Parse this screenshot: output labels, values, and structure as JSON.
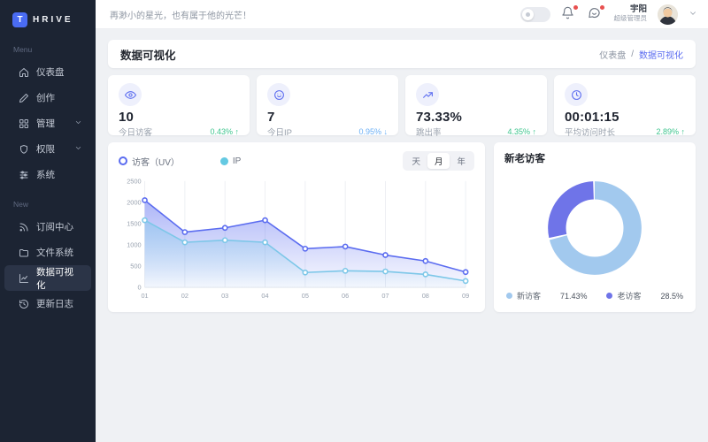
{
  "app": {
    "logo_letter": "T",
    "logo_text": "HRIVE"
  },
  "sidebar": {
    "sections": [
      {
        "label": "Menu",
        "items": [
          {
            "label": "仪表盘",
            "icon": "home-icon"
          },
          {
            "label": "创作",
            "icon": "edit-icon"
          },
          {
            "label": "管理",
            "icon": "grid-icon",
            "expandable": true
          },
          {
            "label": "权限",
            "icon": "shield-icon",
            "expandable": true
          },
          {
            "label": "系统",
            "icon": "sliders-icon"
          }
        ]
      },
      {
        "label": "New",
        "items": [
          {
            "label": "订阅中心",
            "icon": "rss-icon"
          },
          {
            "label": "文件系统",
            "icon": "folder-icon"
          },
          {
            "label": "数据可视化",
            "icon": "chart-icon",
            "active": true
          },
          {
            "label": "更新日志",
            "icon": "history-icon"
          }
        ]
      }
    ]
  },
  "header": {
    "motto": "再渺小的星光，也有属于他的光芒！",
    "user": {
      "name": "宇阳",
      "role": "超级管理员"
    }
  },
  "page": {
    "title": "数据可视化",
    "breadcrumb": {
      "parent": "仪表盘",
      "separator": "/",
      "current": "数据可视化"
    }
  },
  "stats": [
    {
      "icon": "eye-icon",
      "value": "10",
      "label": "今日访客",
      "change": "0.43%",
      "arrow": "↑",
      "trend": "up"
    },
    {
      "icon": "smile-icon",
      "value": "7",
      "label": "今日IP",
      "change": "0.95%",
      "arrow": "↓",
      "trend": "down"
    },
    {
      "icon": "trend-icon",
      "value": "73.33%",
      "label": "跳出率",
      "change": "4.35%",
      "arrow": "↑",
      "trend": "up"
    },
    {
      "icon": "clock-icon",
      "value": "00:01:15",
      "label": "平均访问时长",
      "change": "2.89%",
      "arrow": "↑",
      "trend": "up"
    }
  ],
  "chart_data": [
    {
      "type": "area",
      "legend": [
        {
          "label": "访客（UV）",
          "color": "#5b6cf0",
          "selected": true
        },
        {
          "label": "IP",
          "color": "#49c0dd",
          "selected": false
        }
      ],
      "range_tabs": {
        "options": [
          "天",
          "月",
          "年"
        ],
        "active": "月"
      },
      "x": [
        "01",
        "02",
        "03",
        "04",
        "05",
        "06",
        "07",
        "08",
        "09"
      ],
      "series": [
        {
          "name": "访客（UV）",
          "color": "#5b6cf0",
          "values": [
            2050,
            1300,
            1400,
            1580,
            910,
            960,
            760,
            620,
            360
          ]
        },
        {
          "name": "IP",
          "color": "#7cc7e8",
          "values": [
            1580,
            1060,
            1110,
            1060,
            350,
            390,
            375,
            305,
            150
          ]
        }
      ],
      "ylim": [
        0,
        2500
      ],
      "yticks": [
        0,
        500,
        1000,
        1500,
        2000,
        2500
      ],
      "grid": "vertical",
      "legend_position": "top-left"
    },
    {
      "type": "pie",
      "donut": true,
      "title": "新老访客",
      "slices": [
        {
          "label": "新访客",
          "value": 71.43,
          "display": "71.43%",
          "color": "#a2c9ee"
        },
        {
          "label": "老访客",
          "value": 28.5,
          "display": "28.5%",
          "color": "#6f74e8"
        }
      ],
      "legend_position": "bottom"
    }
  ]
}
